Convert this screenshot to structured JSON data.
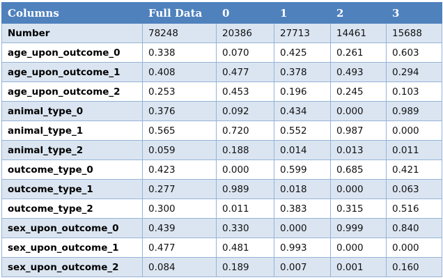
{
  "table": {
    "headers": [
      "Columns",
      "Full Data",
      "0",
      "1",
      "2",
      "3"
    ],
    "rows": [
      [
        "Number",
        "78248",
        "20386",
        "27713",
        "14461",
        "15688"
      ],
      [
        "age_upon_outcome_0",
        "0.338",
        "0.070",
        "0.425",
        "0.261",
        "0.603"
      ],
      [
        "age_upon_outcome_1",
        "0.408",
        "0.477",
        "0.378",
        "0.493",
        "0.294"
      ],
      [
        "age_upon_outcome_2",
        "0.253",
        "0.453",
        "0.196",
        "0.245",
        "0.103"
      ],
      [
        "animal_type_0",
        "0.376",
        "0.092",
        "0.434",
        "0.000",
        "0.989"
      ],
      [
        "animal_type_1",
        "0.565",
        "0.720",
        "0.552",
        "0.987",
        "0.000"
      ],
      [
        "animal_type_2",
        "0.059",
        "0.188",
        "0.014",
        "0.013",
        "0.011"
      ],
      [
        "outcome_type_0",
        "0.423",
        "0.000",
        "0.599",
        "0.685",
        "0.421"
      ],
      [
        "outcome_type_1",
        "0.277",
        "0.989",
        "0.018",
        "0.000",
        "0.063"
      ],
      [
        "outcome_type_2",
        "0.300",
        "0.011",
        "0.383",
        "0.315",
        "0.516"
      ],
      [
        "sex_upon_outcome_0",
        "0.439",
        "0.330",
        "0.000",
        "0.999",
        "0.840"
      ],
      [
        "sex_upon_outcome_1",
        "0.477",
        "0.481",
        "0.993",
        "0.000",
        "0.000"
      ],
      [
        "sex_upon_outcome_2",
        "0.084",
        "0.189",
        "0.007",
        "0.001",
        "0.160"
      ]
    ]
  },
  "colors": {
    "header_bg": "#4f81bd",
    "band_bg": "#dbe5f1",
    "border": "#95b3d7"
  }
}
